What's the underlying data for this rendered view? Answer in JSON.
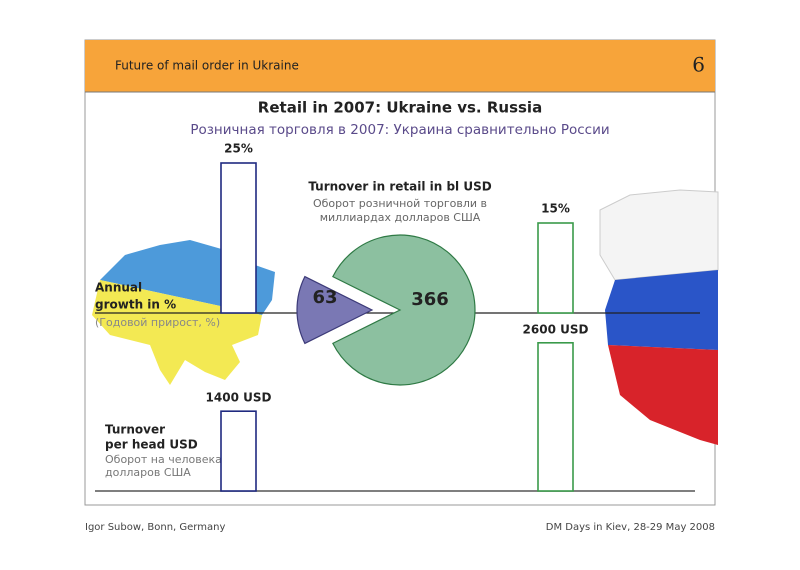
{
  "header": {
    "title": "Future of mail order in Ukraine",
    "page": "6"
  },
  "slide": {
    "title": "Retail in 2007: Ukraine vs. Russia",
    "subtitle": "Розничная торговля в 2007: Украина сравнительно России"
  },
  "growth": {
    "label": [
      "Annual",
      "growth in %"
    ],
    "label_ru": "(Годовой прирост, %)",
    "values": [
      25,
      15
    ],
    "value_labels": [
      "25%",
      "15%"
    ]
  },
  "retail": {
    "label": "Turnover in retail in bl USD",
    "label_ru": [
      "Оборот розничной торговли в",
      "миллиардах долларов США"
    ],
    "values": [
      63,
      366
    ]
  },
  "per_head": {
    "label": [
      "Turnover",
      "per head USD"
    ],
    "label_ru": [
      "Оборот на человека,",
      "долларов США"
    ],
    "values": [
      1400,
      2600
    ],
    "value_labels": [
      "1400 USD",
      "2600 USD"
    ]
  },
  "footer": {
    "left": "Igor Subow, Bonn, Germany",
    "right": "DM Days in Kiev, 28-29 May 2008"
  }
}
